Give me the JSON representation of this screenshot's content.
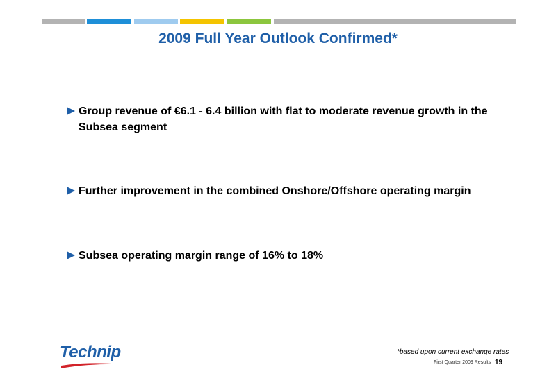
{
  "header": {
    "title": "2009 Full Year Outlook Confirmed*"
  },
  "bullets": [
    "Group revenue of €6.1 - 6.4 billion with flat to moderate revenue growth in the Subsea segment",
    "Further improvement in the combined Onshore/Offshore operating margin",
    "Subsea operating margin range of 16% to 18%"
  ],
  "footnote": "*based upon current exchange rates",
  "footer": {
    "logo": "Technip",
    "text": "First Quarter 2009 Results",
    "page": "19"
  }
}
